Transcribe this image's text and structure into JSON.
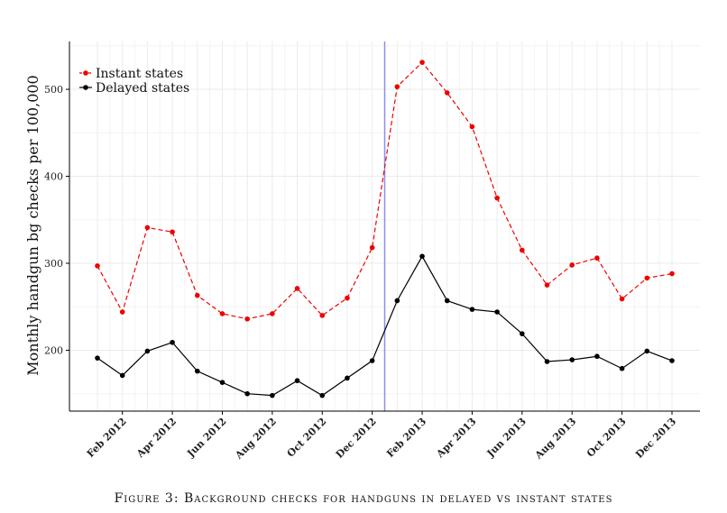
{
  "chart_data": {
    "type": "line",
    "title": "",
    "xlabel": "",
    "ylabel": "Monthly handgun bg checks per 100,000",
    "ylim": [
      130,
      555
    ],
    "yticks": [
      200,
      300,
      400,
      500
    ],
    "grid": true,
    "legend_position": "top-left",
    "x": [
      "Jan 2012",
      "Feb 2012",
      "Mar 2012",
      "Apr 2012",
      "May 2012",
      "Jun 2012",
      "Jul 2012",
      "Aug 2012",
      "Sep 2012",
      "Oct 2012",
      "Nov 2012",
      "Dec 2012",
      "Jan 2013",
      "Feb 2013",
      "Mar 2013",
      "Apr 2013",
      "May 2013",
      "Jun 2013",
      "Jul 2013",
      "Aug 2013",
      "Sep 2013",
      "Oct 2013",
      "Nov 2013",
      "Dec 2013"
    ],
    "tick_labels": [
      "Feb 2012",
      "Apr 2012",
      "Jun 2012",
      "Aug 2012",
      "Oct 2012",
      "Dec 2012",
      "Feb 2013",
      "Apr 2013",
      "Jun 2013",
      "Aug 2013",
      "Oct 2013",
      "Dec 2013"
    ],
    "vertical_line": {
      "x": "Dec 2012",
      "offset_fraction": 0.5,
      "color": "#8a8ef0"
    },
    "series": [
      {
        "name": "Instant states",
        "color": "#ee0000",
        "style": "dashed",
        "values": [
          297,
          244,
          341,
          336,
          263,
          242,
          236,
          242,
          271,
          240,
          260,
          318,
          503,
          531,
          496,
          457,
          375,
          315,
          275,
          298,
          306,
          259,
          283,
          288
        ]
      },
      {
        "name": "Delayed states",
        "color": "#000000",
        "style": "solid",
        "values": [
          191,
          171,
          199,
          209,
          176,
          163,
          150,
          148,
          165,
          148,
          168,
          188,
          257,
          308,
          257,
          247,
          244,
          219,
          187,
          189,
          193,
          179,
          199,
          188
        ]
      }
    ]
  },
  "caption": "Figure 3: Background checks for handguns in delayed vs instant states"
}
